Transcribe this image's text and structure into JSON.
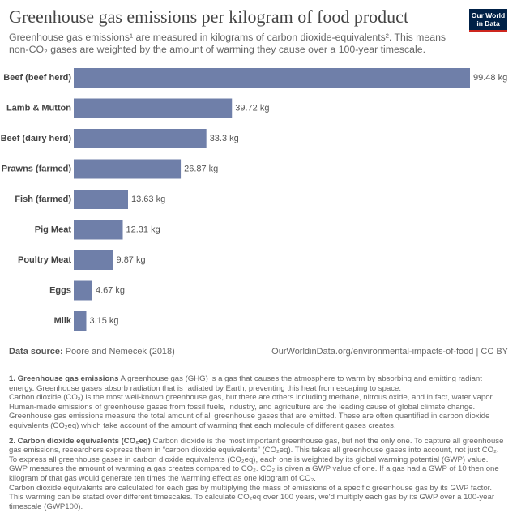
{
  "chart_data": {
    "type": "bar",
    "orientation": "horizontal",
    "title": "Greenhouse gas emissions per kilogram of food product",
    "subtitle": "Greenhouse gas emissions¹ are measured in kilograms of carbon dioxide-equivalents². This means non-CO₂ gases are weighted by the amount of warming they cause over a 100-year timescale.",
    "categories": [
      "Beef (beef herd)",
      "Lamb & Mutton",
      "Beef (dairy herd)",
      "Prawns (farmed)",
      "Fish (farmed)",
      "Pig Meat",
      "Poultry Meat",
      "Eggs",
      "Milk"
    ],
    "values": [
      99.48,
      39.72,
      33.3,
      26.87,
      13.63,
      12.31,
      9.87,
      4.67,
      3.15
    ],
    "value_labels": [
      "99.48 kg",
      "39.72 kg",
      "33.3 kg",
      "26.87 kg",
      "13.63 kg",
      "12.31 kg",
      "9.87 kg",
      "4.67 kg",
      "3.15 kg"
    ],
    "color": "#6f7fa9",
    "source_label": "Data source:",
    "source": "Poore and Nemecek (2018)",
    "url": "OurWorldinData.org/environmental-impacts-of-food | CC BY",
    "logo": [
      "Our World",
      "in Data"
    ],
    "notes": [
      {
        "label": "1. Greenhouse gas emissions",
        "paragraphs": [
          "A greenhouse gas (GHG) is a gas that causes the atmosphere to warm by absorbing and emitting radiant energy. Greenhouse gases absorb radiation that is radiated by Earth, preventing this heat from escaping to space.",
          "Carbon dioxide (CO₂) is the most well-known greenhouse gas, but there are others including methane, nitrous oxide, and in fact, water vapor. Human-made emissions of greenhouse gases from fossil fuels, industry, and agriculture are the leading cause of global climate change. Greenhouse gas emissions measure the total amount of all greenhouse gases that are emitted. These are often quantified in carbon dioxide equivalents (CO₂eq) which take account of the amount of warming that each molecule of different gases creates."
        ]
      },
      {
        "label": "2. Carbon dioxide equivalents (CO₂eq)",
        "paragraphs": [
          "Carbon dioxide is the most important greenhouse gas, but not the only one. To capture all greenhouse gas emissions, researchers express them in “carbon dioxide equivalents” (CO₂eq). This takes all greenhouse gases into account, not just CO₂.",
          "To express all greenhouse gases in carbon dioxide equivalents (CO₂eq), each one is weighted by its global warming potential (GWP) value. GWP measures the amount of warming a gas creates compared to CO₂. CO₂ is given a GWP value of one. If a gas had a GWP of 10 then one kilogram of that gas would generate ten times the warming effect as one kilogram of CO₂.",
          "Carbon dioxide equivalents are calculated for each gas by multiplying the mass of emissions of a specific greenhouse gas by its GWP factor. This warming can be stated over different timescales. To calculate CO₂eq over 100 years, we'd multiply each gas by its GWP over a 100-year timescale (GWP100)."
        ]
      }
    ]
  }
}
